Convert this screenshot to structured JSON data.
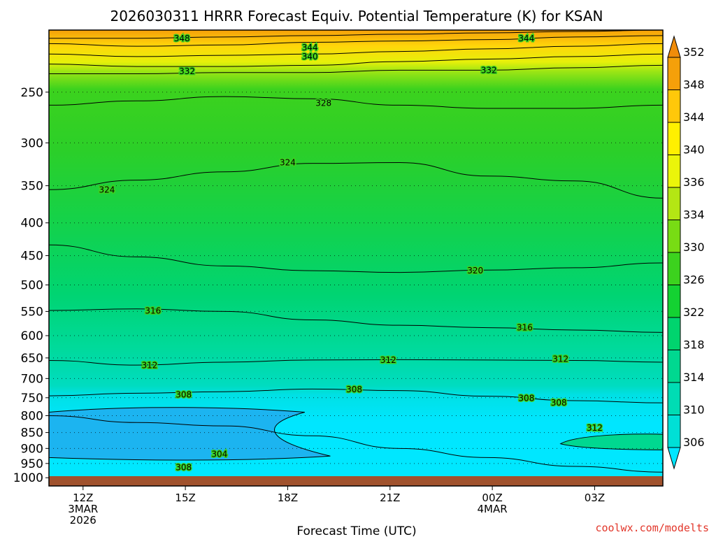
{
  "chart_data": {
    "type": "heatmap",
    "title": "2026030311 HRRR Forecast Equiv. Potential Temperature (K) for KSAN",
    "xlabel": "Forecast Time (UTC)",
    "ylabel": "",
    "credit": "coolwx.com/modelts",
    "y_axis": {
      "scale": "log-pressure",
      "units": "hPa",
      "range": [
        1030,
        200
      ],
      "ticks": [
        250,
        300,
        350,
        400,
        450,
        500,
        550,
        600,
        650,
        700,
        750,
        800,
        850,
        900,
        950,
        1000
      ],
      "tick_labels": [
        "250",
        "300",
        "350",
        "400",
        "450",
        "500",
        "550",
        "600",
        "650",
        "700",
        "750",
        "800",
        "850",
        "900",
        "950",
        "1000"
      ]
    },
    "x_axis": {
      "units": "forecast hour",
      "range": [
        -2,
        34
      ],
      "ticks": [
        {
          "hour": 0,
          "lines": [
            "12Z",
            "3MAR",
            "2026"
          ]
        },
        {
          "hour": 6,
          "lines": [
            "15Z"
          ]
        },
        {
          "hour": 12,
          "lines": [
            "18Z"
          ]
        },
        {
          "hour": 18,
          "lines": [
            "21Z"
          ]
        },
        {
          "hour": 24,
          "lines": [
            "00Z",
            "4MAR"
          ]
        },
        {
          "hour": 30,
          "lines": [
            "03Z"
          ]
        }
      ]
    },
    "colorbar": {
      "levels": [
        306,
        310,
        314,
        318,
        322,
        326,
        330,
        334,
        336,
        340,
        344,
        348,
        352
      ],
      "colors": [
        "#00e6ff",
        "#00e0d6",
        "#00dcb4",
        "#00d890",
        "#00d46e",
        "#14d232",
        "#3cd21e",
        "#78dc14",
        "#b4e614",
        "#ebf50a",
        "#fff000",
        "#ffc80a",
        "#f5a00a",
        "#f08c0a"
      ],
      "extend": "both"
    },
    "contour_lines": [
      {
        "level": 348,
        "pressure": [
          206,
          206,
          205,
          204,
          203,
          202,
          201,
          200
        ],
        "label": "348"
      },
      {
        "level": 344,
        "pressure": [
          210,
          212,
          211,
          209,
          208,
          207,
          205,
          204
        ],
        "label": "344"
      },
      {
        "level": 340,
        "pressure": [
          218,
          220,
          219,
          218,
          216,
          214,
          212,
          210
        ],
        "label": "340"
      },
      {
        "level": 336,
        "pressure": [
          226,
          228,
          228,
          227,
          224,
          222,
          220,
          218
        ],
        "label": ""
      },
      {
        "level": 332,
        "pressure": [
          234,
          234,
          233,
          233,
          231,
          231,
          229,
          227
        ],
        "label": "332"
      },
      {
        "level": 328,
        "pressure": [
          262,
          258,
          254,
          256,
          262,
          265,
          265,
          262
        ],
        "label": "328"
      },
      {
        "level": 324,
        "pressure": [
          355,
          343,
          333,
          323,
          322,
          338,
          344,
          366
        ],
        "label": "324"
      },
      {
        "level": 320,
        "pressure": [
          433,
          452,
          467,
          475,
          478,
          474,
          470,
          462
        ],
        "label": "320"
      },
      {
        "level": 316,
        "pressure": [
          548,
          545,
          550,
          567,
          578,
          583,
          588,
          593
        ],
        "label": "316"
      },
      {
        "level": 312,
        "pressure": [
          656,
          667,
          660,
          655,
          654,
          655,
          656,
          660
        ],
        "label": "312"
      },
      {
        "level": 308,
        "pressure": [
          745,
          738,
          734,
          727,
          731,
          746,
          758,
          764
        ],
        "label": "308"
      },
      {
        "level": 304,
        "pressure": [
          800,
          820,
          830,
          860,
          900,
          930,
          960,
          980
        ],
        "label": "304"
      }
    ],
    "contour_label_positions": [
      {
        "text": "348",
        "hour": 5.8,
        "pressure": 206
      },
      {
        "text": "344",
        "hour": 13.3,
        "pressure": 213
      },
      {
        "text": "340",
        "hour": 13.3,
        "pressure": 220
      },
      {
        "text": "344",
        "hour": 26.0,
        "pressure": 206
      },
      {
        "text": "332",
        "hour": 6.1,
        "pressure": 232
      },
      {
        "text": "332",
        "hour": 23.8,
        "pressure": 231
      },
      {
        "text": "328",
        "hour": 14.1,
        "pressure": 260
      },
      {
        "text": "324",
        "hour": 12.0,
        "pressure": 322
      },
      {
        "text": "324",
        "hour": 1.4,
        "pressure": 355
      },
      {
        "text": "320",
        "hour": 23.0,
        "pressure": 475
      },
      {
        "text": "316",
        "hour": 4.1,
        "pressure": 549
      },
      {
        "text": "316",
        "hour": 25.9,
        "pressure": 583
      },
      {
        "text": "312",
        "hour": 3.9,
        "pressure": 668
      },
      {
        "text": "312",
        "hour": 17.9,
        "pressure": 655
      },
      {
        "text": "312",
        "hour": 28.0,
        "pressure": 653
      },
      {
        "text": "308",
        "hour": 5.9,
        "pressure": 742
      },
      {
        "text": "308",
        "hour": 15.9,
        "pressure": 728
      },
      {
        "text": "308",
        "hour": 26.0,
        "pressure": 751
      },
      {
        "text": "308",
        "hour": 27.9,
        "pressure": 764
      },
      {
        "text": "312",
        "hour": 30.0,
        "pressure": 836
      },
      {
        "text": "304",
        "hour": 8.0,
        "pressure": 919
      },
      {
        "text": "308",
        "hour": 5.9,
        "pressure": 964
      }
    ]
  }
}
